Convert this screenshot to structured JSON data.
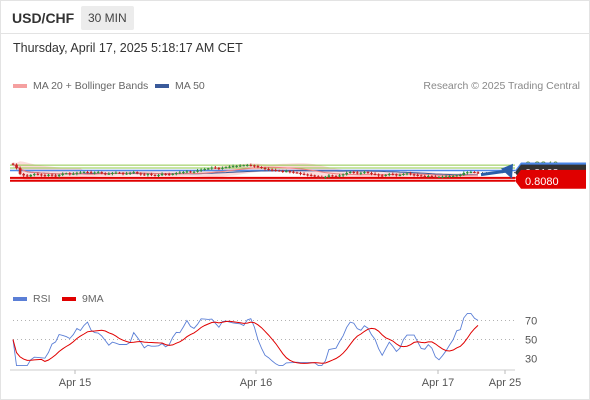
{
  "header": {
    "symbol": "USD/CHF",
    "timeframe": "30 MIN"
  },
  "datetime": "Thursday, April 17, 2025 5:18:17 AM CET",
  "legend": {
    "ma20": "MA 20 + Bollinger Bands",
    "ma50": "MA 50",
    "ma20_color": "#f08080",
    "ma50_color": "#3a5a9a"
  },
  "research": "Research © 2025 Trading Central",
  "rsi_legend": {
    "rsi": "RSI",
    "ma9": "9MA",
    "rsi_color": "#5b7fd6",
    "ma9_color": "#e00000"
  },
  "chart_data": [
    {
      "type": "candlestick",
      "title": "USD/CHF",
      "x_ticks": [
        "Apr 15",
        "Apr 16",
        "Apr 17",
        "Apr 25"
      ],
      "y_levels": [
        {
          "label": "0.8240",
          "value": 0.824,
          "kind": "resistance",
          "color": "#8fc84a"
        },
        {
          "label": "0.8210",
          "value": 0.821,
          "kind": "resistance",
          "color": "#8fc84a"
        },
        {
          "label": "0.8185",
          "value": 0.8185,
          "kind": "pivot",
          "color": "#4a86e8"
        },
        {
          "label": "0.8163",
          "value": 0.8163,
          "kind": "last-price",
          "color": "#333333"
        },
        {
          "label": "0.8110",
          "value": 0.811,
          "kind": "support",
          "color": "#e00000"
        },
        {
          "label": "0.8080",
          "value": 0.808,
          "kind": "support",
          "color": "#e00000"
        }
      ],
      "forecast": {
        "from": 0.8163,
        "to": 0.808,
        "color": "#2a5ea8"
      },
      "close_series": [
        0.8245,
        0.821,
        0.815,
        0.8135,
        0.8125,
        0.814,
        0.8148,
        0.8145,
        0.8138,
        0.813,
        0.8142,
        0.8135,
        0.8128,
        0.814,
        0.8152,
        0.8156,
        0.8148,
        0.8152,
        0.8162,
        0.8165,
        0.817,
        0.8168,
        0.816,
        0.8165,
        0.8168,
        0.8155,
        0.815,
        0.8152,
        0.816,
        0.8163,
        0.8158,
        0.815,
        0.8155,
        0.8162,
        0.8168,
        0.8155,
        0.8145,
        0.814,
        0.8148,
        0.814,
        0.8132,
        0.8138,
        0.815,
        0.8148,
        0.8142,
        0.815,
        0.8158,
        0.8165,
        0.817,
        0.8175,
        0.8168,
        0.8172,
        0.8185,
        0.8195,
        0.82,
        0.8205,
        0.8215,
        0.821,
        0.8205,
        0.8212,
        0.822,
        0.8225,
        0.823,
        0.8232,
        0.8235,
        0.8238,
        0.824,
        0.8236,
        0.823,
        0.822,
        0.821,
        0.82,
        0.8195,
        0.819,
        0.8185,
        0.818,
        0.8175,
        0.8178,
        0.8172,
        0.8165,
        0.816,
        0.815,
        0.8145,
        0.814,
        0.8135,
        0.8125,
        0.8118,
        0.8115,
        0.812,
        0.8135,
        0.8128,
        0.8125,
        0.8135,
        0.8145,
        0.816,
        0.817,
        0.8165,
        0.8155,
        0.8162,
        0.8168,
        0.816,
        0.815,
        0.8145,
        0.8135,
        0.813,
        0.814,
        0.8148,
        0.8145,
        0.8138,
        0.814,
        0.815,
        0.8155,
        0.8145,
        0.814,
        0.8135,
        0.813,
        0.8125,
        0.8128,
        0.8122,
        0.8118,
        0.812,
        0.8122,
        0.8125,
        0.8128,
        0.813,
        0.8135,
        0.814,
        0.816,
        0.8168,
        0.817,
        0.8165,
        0.8163
      ]
    },
    {
      "type": "line",
      "title": "RSI",
      "y_ticks": [
        "70",
        "50",
        "30"
      ],
      "ylim": [
        20,
        80
      ]
    }
  ]
}
